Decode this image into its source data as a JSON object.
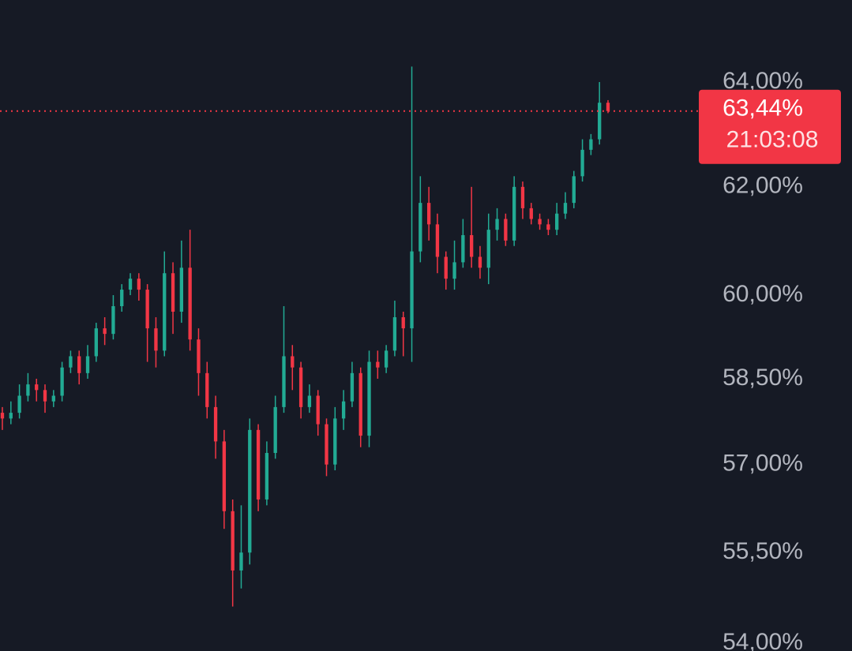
{
  "chart_data": {
    "type": "candlestick",
    "log_scale": true,
    "grid": false,
    "background": "#161a25",
    "up_color": "#22ab94",
    "down_color": "#f23645",
    "axis_text_color": "#b2b5be",
    "ylim": [
      53.87,
      65.61
    ],
    "yticks": [
      {
        "value": 64,
        "label": "64,00%"
      },
      {
        "value": 62,
        "label": "62,00%"
      },
      {
        "value": 60,
        "label": "60,00%"
      },
      {
        "value": 58.5,
        "label": "58,50%"
      },
      {
        "value": 57,
        "label": "57,00%"
      },
      {
        "value": 55.5,
        "label": "55,50%"
      },
      {
        "value": 54,
        "label": "54,00%"
      }
    ],
    "last_price": {
      "value": 63.44,
      "label": "63,44%"
    },
    "countdown": "21:03:08",
    "open": [
      57.9,
      57.8,
      57.9,
      58.2,
      58.4,
      58.3,
      58.1,
      58.2,
      58.7,
      58.9,
      58.6,
      58.9,
      59.4,
      59.3,
      59.8,
      60.1,
      60.3,
      60.1,
      59.4,
      59.0,
      60.4,
      59.7,
      60.5,
      59.2,
      58.6,
      58.0,
      57.4,
      56.2,
      55.2,
      55.5,
      57.6,
      56.4,
      57.2,
      58.0,
      58.9,
      58.7,
      58.0,
      58.2,
      57.7,
      57.0,
      57.8,
      58.1,
      58.6,
      57.5,
      58.8,
      58.7,
      59.0,
      59.6,
      59.4,
      60.8,
      61.7,
      61.3,
      60.7,
      60.3,
      60.6,
      61.1,
      60.7,
      60.5,
      61.2,
      61.4,
      61.0,
      62.0,
      61.6,
      61.4,
      61.3,
      61.2,
      61.5,
      61.7,
      62.2,
      62.7,
      62.9,
      63.6
    ],
    "high": [
      58.0,
      58.1,
      58.4,
      58.6,
      58.5,
      58.4,
      58.3,
      58.8,
      59.0,
      59.0,
      59.1,
      59.5,
      59.6,
      60.0,
      60.2,
      60.4,
      60.4,
      60.2,
      59.6,
      60.8,
      60.6,
      61.0,
      61.2,
      59.4,
      58.8,
      58.2,
      57.6,
      56.4,
      56.3,
      57.8,
      57.7,
      57.4,
      58.2,
      59.8,
      59.1,
      58.8,
      58.4,
      58.3,
      57.8,
      58.0,
      58.3,
      58.8,
      58.7,
      59.0,
      59.0,
      59.1,
      59.9,
      59.7,
      64.3,
      62.2,
      62.0,
      61.5,
      60.8,
      61.0,
      61.4,
      62.0,
      60.9,
      61.5,
      61.6,
      61.5,
      62.2,
      62.1,
      61.7,
      61.5,
      61.4,
      61.7,
      61.9,
      62.3,
      62.9,
      63.0,
      64.0,
      63.65
    ],
    "low": [
      57.6,
      57.7,
      57.8,
      58.1,
      58.1,
      57.9,
      58.0,
      58.1,
      58.6,
      58.4,
      58.5,
      58.8,
      59.1,
      59.2,
      59.7,
      60.0,
      59.9,
      58.8,
      58.7,
      58.9,
      59.3,
      59.5,
      59.0,
      58.2,
      57.8,
      57.1,
      55.9,
      54.6,
      54.9,
      55.3,
      56.2,
      56.3,
      57.1,
      57.9,
      58.3,
      57.8,
      57.9,
      57.5,
      56.8,
      56.9,
      57.6,
      58.0,
      57.3,
      57.3,
      58.5,
      58.6,
      58.9,
      58.9,
      58.8,
      60.6,
      61.0,
      60.4,
      60.1,
      60.1,
      60.5,
      60.5,
      60.3,
      60.2,
      61.0,
      60.9,
      60.9,
      61.4,
      61.3,
      61.2,
      61.1,
      61.1,
      61.4,
      61.6,
      62.1,
      62.6,
      62.8,
      63.4
    ],
    "close": [
      57.8,
      57.9,
      58.2,
      58.4,
      58.3,
      58.1,
      58.2,
      58.7,
      58.9,
      58.6,
      58.9,
      59.4,
      59.3,
      59.8,
      60.1,
      60.3,
      60.1,
      59.4,
      59.0,
      60.4,
      59.7,
      60.5,
      59.2,
      58.6,
      58.0,
      57.4,
      56.2,
      55.2,
      55.5,
      57.6,
      56.4,
      57.2,
      58.0,
      58.9,
      58.7,
      58.0,
      58.2,
      57.7,
      57.0,
      57.8,
      58.1,
      58.6,
      57.5,
      58.8,
      58.7,
      59.0,
      59.6,
      59.4,
      60.8,
      61.7,
      61.3,
      60.7,
      60.3,
      60.6,
      61.1,
      60.7,
      60.5,
      61.2,
      61.4,
      61.0,
      62.0,
      61.6,
      61.4,
      61.3,
      61.2,
      61.5,
      61.7,
      62.2,
      62.7,
      62.9,
      63.6,
      63.44
    ]
  }
}
